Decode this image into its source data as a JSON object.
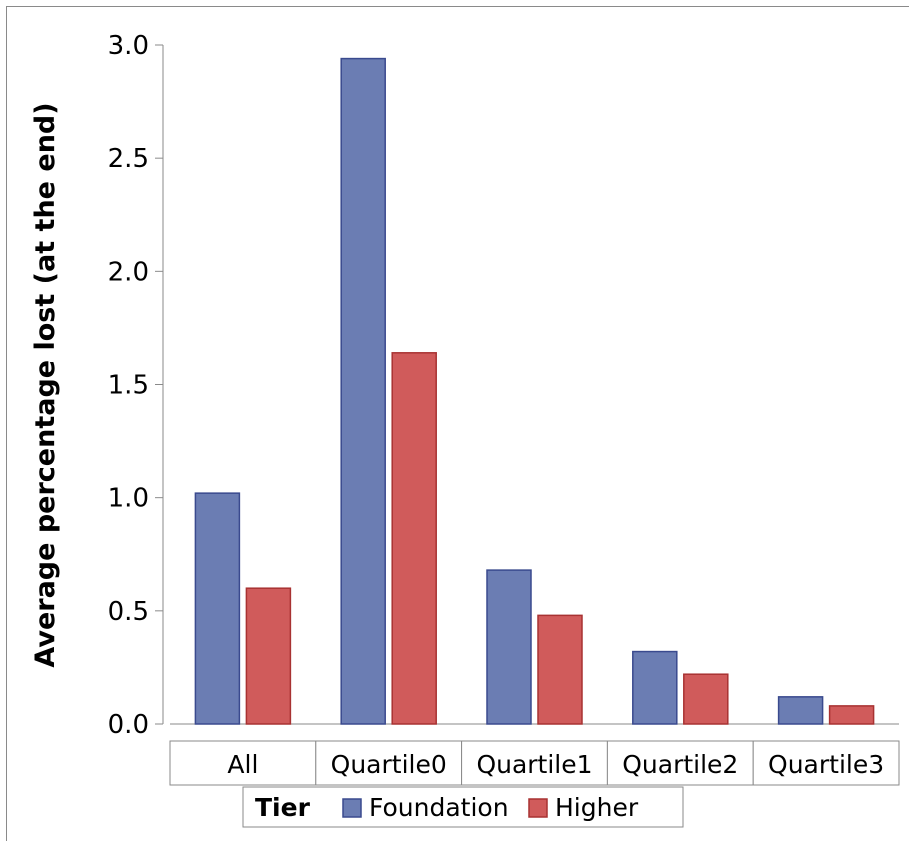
{
  "chart_data": {
    "type": "bar",
    "ylabel": "Average percentage lost (at the end)",
    "xlabel": "",
    "ylim": [
      0,
      3.0
    ],
    "yticks": [
      "0.0",
      "0.5",
      "1.0",
      "1.5",
      "2.0",
      "2.5",
      "3.0"
    ],
    "categories": [
      "All",
      "Quartile0",
      "Quartile1",
      "Quartile2",
      "Quartile3"
    ],
    "legend": {
      "title": "Tier",
      "placement": "bottom"
    },
    "series": [
      {
        "name": "Foundation",
        "color": "#6b7db3",
        "edge": "#3a4a8e",
        "values": [
          1.02,
          2.94,
          0.68,
          0.32,
          0.12
        ]
      },
      {
        "name": "Higher",
        "color": "#d05b5b",
        "edge": "#a83232",
        "values": [
          0.6,
          1.64,
          0.48,
          0.22,
          0.08
        ]
      }
    ],
    "grid": false
  }
}
